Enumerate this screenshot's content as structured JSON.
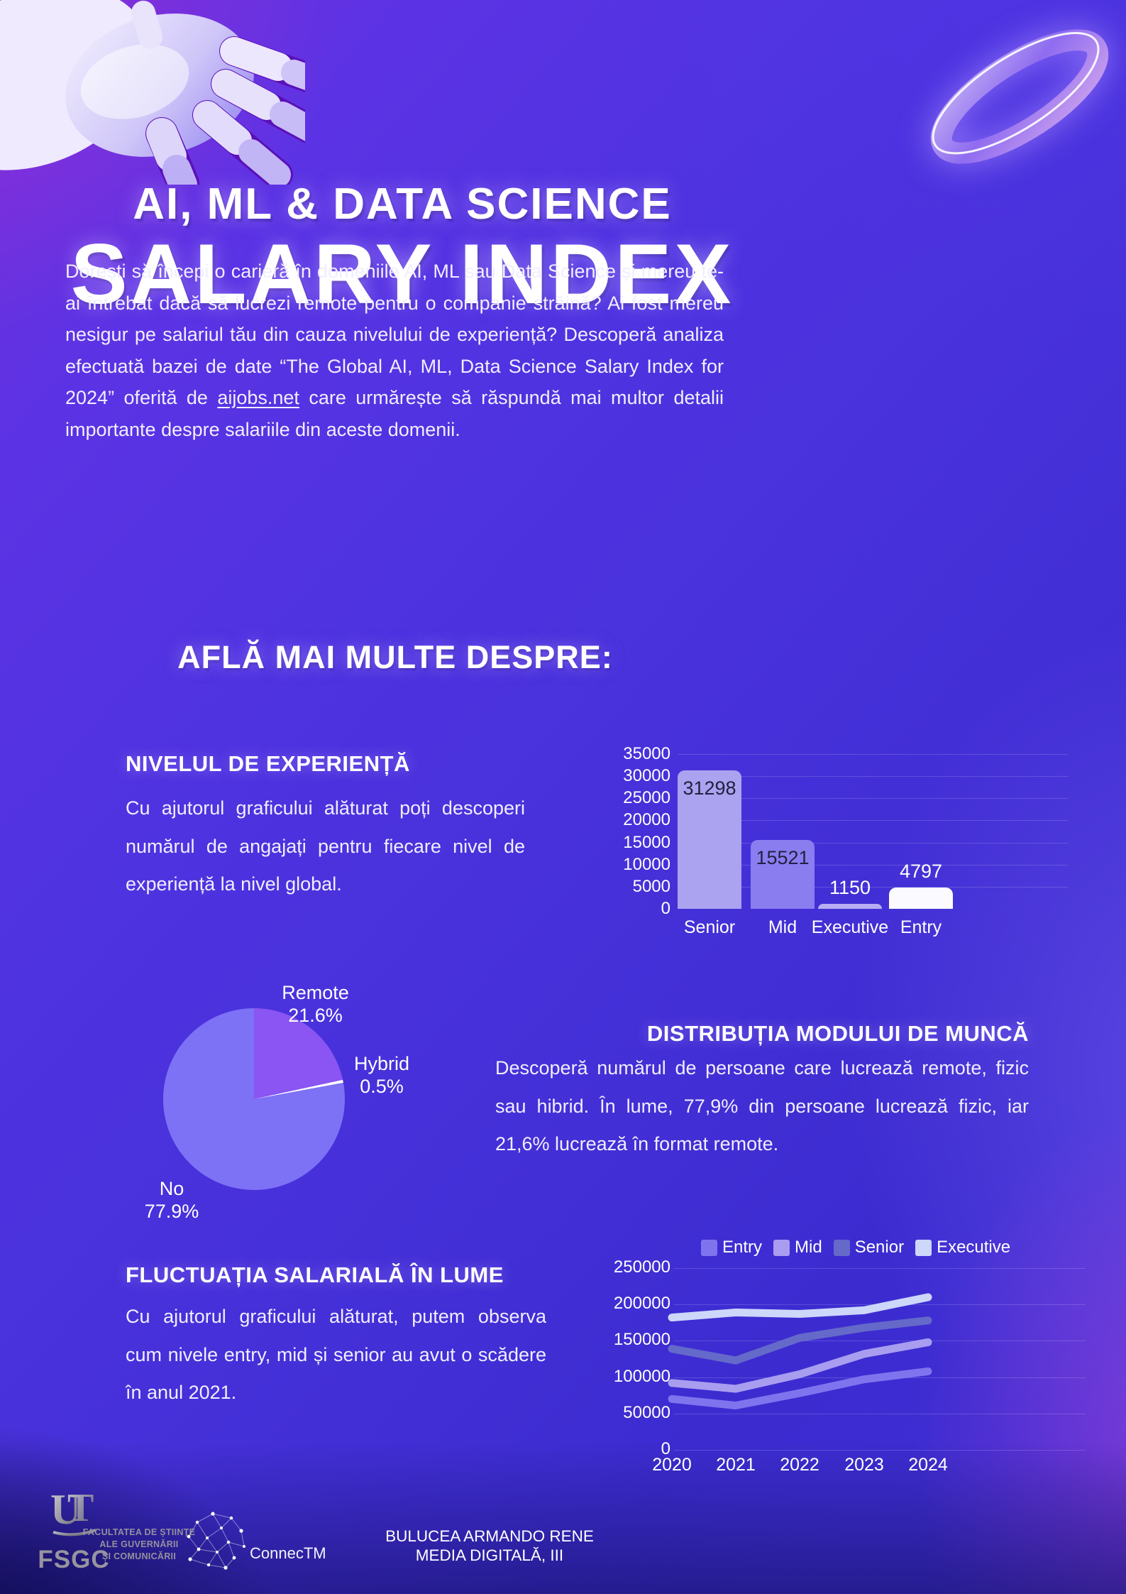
{
  "page": {
    "title_line1": "AI, ML & DATA SCIENCE",
    "title_line2": "SALARY INDEX",
    "intro": {
      "text_before_link": "Dorești să începi o carieră în domeniile AI, ML sau Data Science și mereu te-ai întrebat dacă să lucrezi remote pentru o companie străină? Ai fost mereu nesigur pe salariul tău din cauza nivelului de experiență? Descoperă analiza efectuată bazei de date “The Global AI, ML, Data Science Salary Index for 2024” oferită de ",
      "link_text": "aijobs.net",
      "text_after_link": " care urmărește să răspundă mai multor detalii importante despre salariile din aceste domenii."
    },
    "subheading": "AFLĂ MAI MULTE DESPRE:"
  },
  "sections": {
    "experience": {
      "heading": "NIVELUL DE EXPERIENȚĂ",
      "body": "Cu ajutorul graficului alăturat poți descoperi numărul de angajați pentru fiecare nivel de experiență la nivel global."
    },
    "work_mode": {
      "heading": "DISTRIBUȚIA MODULUI DE MUNCĂ",
      "body": "Descoperă numărul de persoane care lucrează remote, fizic sau hibrid. În lume, 77,9% din persoane lucrează fizic, iar 21,6% lucrează în format remote."
    },
    "salary_fluctuation": {
      "heading": "FLUCTUAȚIA SALARIALĂ ÎN LUME",
      "body": "Cu ajutorul graficului alăturat, putem observa cum nivele entry, mid și senior au avut o scădere în anul 2021."
    }
  },
  "chart_data": [
    {
      "id": "experience_bar",
      "type": "bar",
      "categories": [
        "Senior",
        "Mid",
        "Executive",
        "Entry"
      ],
      "values": [
        31298,
        15521,
        1150,
        4797
      ],
      "ylim": [
        0,
        35000
      ],
      "yticks": [
        0,
        5000,
        10000,
        15000,
        20000,
        25000,
        30000,
        35000
      ],
      "bar_colors": [
        "#aba2f0",
        "#8a7df0",
        "#b8adf2",
        "#fbfbff"
      ],
      "label_inside": [
        true,
        true,
        false,
        false
      ],
      "grid": true,
      "legend_position": "none"
    },
    {
      "id": "work_mode_pie",
      "type": "pie",
      "slices": [
        {
          "label": "Remote",
          "pct_label": "21.6%",
          "value": 21.6,
          "color": "#8a55f2"
        },
        {
          "label": "Hybrid",
          "pct_label": "0.5%",
          "value": 0.5,
          "color": "#ffffff"
        },
        {
          "label": "No",
          "pct_label": "77.9%",
          "value": 77.9,
          "color": "#7d72f5"
        }
      ],
      "start_angle_deg": 0,
      "direction": "clockwise"
    },
    {
      "id": "salary_lines",
      "type": "line",
      "x": [
        2020,
        2021,
        2022,
        2023,
        2024
      ],
      "series": [
        {
          "name": "Entry",
          "color": "#7f74ee",
          "values": [
            70000,
            61000,
            78000,
            97000,
            108000
          ]
        },
        {
          "name": "Mid",
          "color": "#a99df0",
          "values": [
            92000,
            84000,
            104000,
            132000,
            148000
          ]
        },
        {
          "name": "Senior",
          "color": "#6569c9",
          "values": [
            139000,
            123000,
            154000,
            168000,
            178000
          ]
        },
        {
          "name": "Executive",
          "color": "#ccd7fa",
          "values": [
            182000,
            189000,
            187000,
            192000,
            210000
          ]
        }
      ],
      "ylim": [
        0,
        250000
      ],
      "yticks": [
        0,
        50000,
        100000,
        150000,
        200000,
        250000
      ],
      "grid": true,
      "legend_position": "top"
    }
  ],
  "footer": {
    "fsgc_label": "FSGC",
    "faculty_lines": [
      "FACULTATEA DE ȘTIINȚE",
      "ALE GUVERNĂRII",
      "ȘI COMUNICĂRII"
    ],
    "connectm_label": "ConnecTM",
    "credit_line1": "BULUCEA ARMANDO RENE",
    "credit_line2": "MEDIA DIGITALĂ, III"
  },
  "theme": {
    "background_top": "#6a2fd8",
    "background_bottom": "#3a2bd0",
    "text": "#ffffff",
    "joint_purple": "#5a10b8"
  }
}
